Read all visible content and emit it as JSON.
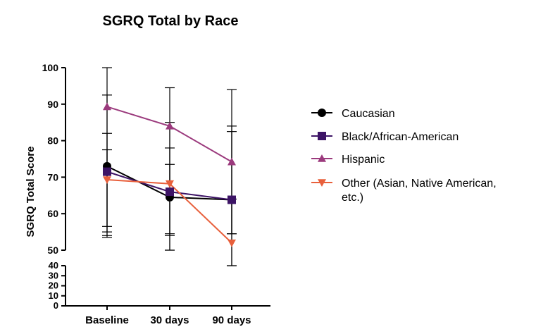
{
  "chart_data": {
    "type": "line",
    "title": "SGRQ Total by Race",
    "xlabel": "",
    "ylabel": "SGRQ Total Score",
    "categories": [
      "Baseline",
      "30 days",
      "90 days"
    ],
    "ylim_upper": [
      50,
      100
    ],
    "ylim_lower": [
      0,
      40
    ],
    "yticks_upper": [
      50,
      60,
      70,
      80,
      90,
      100
    ],
    "yticks_lower": [
      0,
      10,
      20,
      30,
      40
    ],
    "legend_position": "right",
    "series": [
      {
        "name": "Caucasian",
        "marker": "circle",
        "color": "#000000",
        "values": [
          73,
          64.5,
          63.8
        ],
        "error_high": [
          92.5,
          78,
          84
        ],
        "error_low": [
          53.5,
          54.5,
          54.5
        ]
      },
      {
        "name": "Black/African-American",
        "marker": "square",
        "color": "#3d1466",
        "values": [
          71.5,
          66,
          63.8
        ],
        "error_high": [
          77.5,
          73.5,
          82.5
        ],
        "error_low": [
          56.5,
          54,
          54.5
        ]
      },
      {
        "name": "Hispanic",
        "marker": "triangle-up",
        "color": "#9b3a7d",
        "values": [
          89.3,
          84,
          74.2
        ],
        "error_high": [
          100,
          94.5,
          94
        ],
        "error_low": [
          54,
          50,
          40
        ]
      },
      {
        "name": "Other  (Asian, Native American, etc.)",
        "name_lines": [
          "Other  (Asian, Native American,",
          "etc.)"
        ],
        "marker": "triangle-down",
        "color": "#e8603c",
        "values": [
          69.3,
          68.2,
          52
        ],
        "error_high": [
          82,
          85,
          64
        ],
        "error_low": [
          55,
          50,
          40
        ]
      }
    ]
  }
}
